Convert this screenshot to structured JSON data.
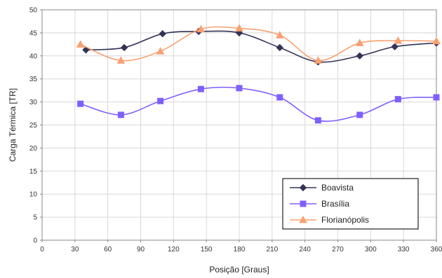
{
  "chart_data": {
    "type": "line",
    "title": "",
    "xlabel": "Posição [Graus]",
    "ylabel": "Carga Térmica [TR]",
    "xlim": [
      0,
      360
    ],
    "ylim": [
      0,
      50
    ],
    "xticks": [
      0,
      30,
      60,
      90,
      120,
      150,
      180,
      210,
      240,
      270,
      300,
      330,
      360
    ],
    "yticks": [
      0,
      5,
      10,
      15,
      20,
      25,
      30,
      35,
      40,
      45,
      50
    ],
    "grid": true,
    "legend_position": "bottom-right",
    "series": [
      {
        "name": "Boavista",
        "color": "#333355",
        "marker": "diamond",
        "x": [
          40,
          75,
          110,
          143,
          180,
          217,
          252,
          290,
          322,
          360
        ],
        "y": [
          41.3,
          41.8,
          44.8,
          45.3,
          45.0,
          41.8,
          38.7,
          40.0,
          42.0,
          42.8
        ]
      },
      {
        "name": "Brasília",
        "color": "#7f5fff",
        "marker": "square",
        "x": [
          35,
          72,
          108,
          145,
          180,
          217,
          252,
          290,
          325,
          360
        ],
        "y": [
          29.6,
          27.2,
          30.2,
          32.8,
          33.0,
          31.0,
          26.0,
          27.2,
          30.6,
          31.0
        ]
      },
      {
        "name": "Florianópolis",
        "color": "#f9a070",
        "marker": "triangle",
        "x": [
          35,
          72,
          108,
          145,
          180,
          217,
          252,
          290,
          325,
          360
        ],
        "y": [
          42.5,
          39.0,
          41.0,
          45.8,
          46.0,
          44.5,
          39.0,
          42.8,
          43.3,
          43.2
        ]
      }
    ]
  }
}
